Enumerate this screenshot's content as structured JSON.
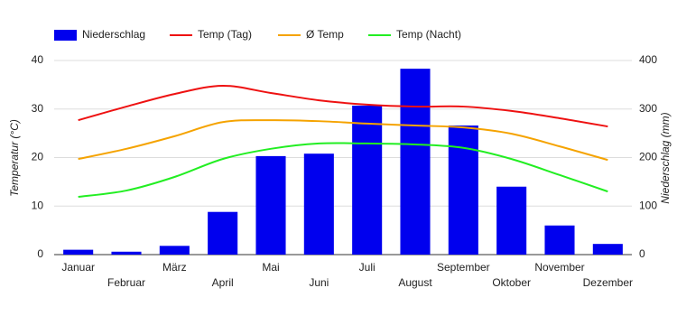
{
  "chart_data": {
    "type": "combo",
    "categories": [
      "Januar",
      "Februar",
      "März",
      "April",
      "Mai",
      "Juni",
      "Juli",
      "August",
      "September",
      "Oktober",
      "November",
      "Dezember"
    ],
    "y_label": "Temperatur (°C)",
    "y2_label": "Niederschlag (mm)",
    "ylim": [
      0,
      40
    ],
    "yticks": [
      0,
      10,
      20,
      30,
      40
    ],
    "y2lim": [
      0,
      400
    ],
    "y2ticks": [
      0,
      100,
      200,
      300,
      400
    ],
    "grid": true,
    "legend": "top",
    "series": [
      {
        "name": "Niederschlag",
        "type": "bar",
        "axis": "y2",
        "color": "#0000ee",
        "values": [
          10,
          6,
          18,
          88,
          203,
          208,
          307,
          383,
          266,
          140,
          60,
          22
        ]
      },
      {
        "name": "Temp (Tag)",
        "type": "line",
        "color": "#ee1111",
        "values": [
          27.7,
          30.5,
          33.1,
          34.8,
          33.3,
          31.8,
          30.9,
          30.5,
          30.5,
          29.6,
          28.1,
          26.4
        ]
      },
      {
        "name": "Ø Temp",
        "type": "line",
        "color": "#f5a300",
        "values": [
          19.7,
          21.8,
          24.4,
          27.3,
          27.7,
          27.5,
          27.0,
          26.6,
          26.2,
          24.9,
          22.3,
          19.5
        ]
      },
      {
        "name": "Temp (Nacht)",
        "type": "line",
        "color": "#22ee22",
        "values": [
          11.9,
          13.2,
          16.0,
          19.7,
          21.8,
          22.9,
          22.9,
          22.7,
          22.0,
          19.7,
          16.4,
          13.0
        ]
      }
    ]
  }
}
